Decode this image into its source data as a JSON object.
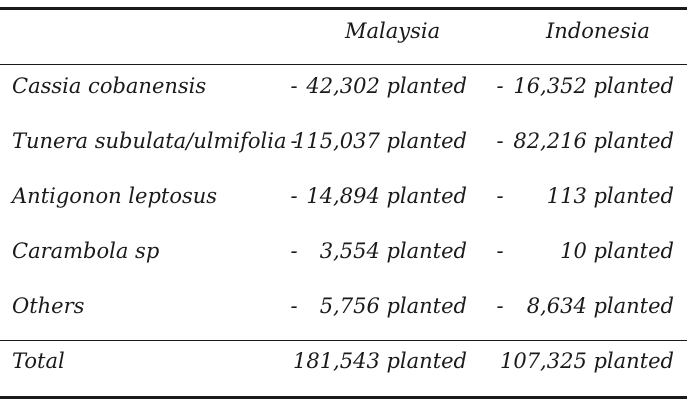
{
  "headers": {
    "col1": "",
    "col2": "Malaysia",
    "col3": "Indonesia"
  },
  "rows": [
    {
      "label": "Cassia cobanensis",
      "dash_my": "-",
      "malaysia": "42,302 planted",
      "dash_id": "-",
      "indonesia": "16,352 planted"
    },
    {
      "label": "Tunera subulata/ulmifolia",
      "dash_my": "-",
      "malaysia": "115,037 planted",
      "dash_id": "-",
      "indonesia": "82,216 planted"
    },
    {
      "label": "Antigonon leptosus",
      "dash_my": "-",
      "malaysia": "14,894 planted",
      "dash_id": "-",
      "indonesia": "113 planted"
    },
    {
      "label": "Carambola sp",
      "dash_my": "-",
      "malaysia": "3,554 planted",
      "dash_id": "-",
      "indonesia": "10 planted"
    },
    {
      "label": "Others",
      "dash_my": "-",
      "malaysia": "5,756 planted",
      "dash_id": "-",
      "indonesia": "8,634 planted"
    }
  ],
  "total": {
    "label": "Total",
    "malaysia": "181,543 planted",
    "indonesia": "107,325 planted"
  }
}
